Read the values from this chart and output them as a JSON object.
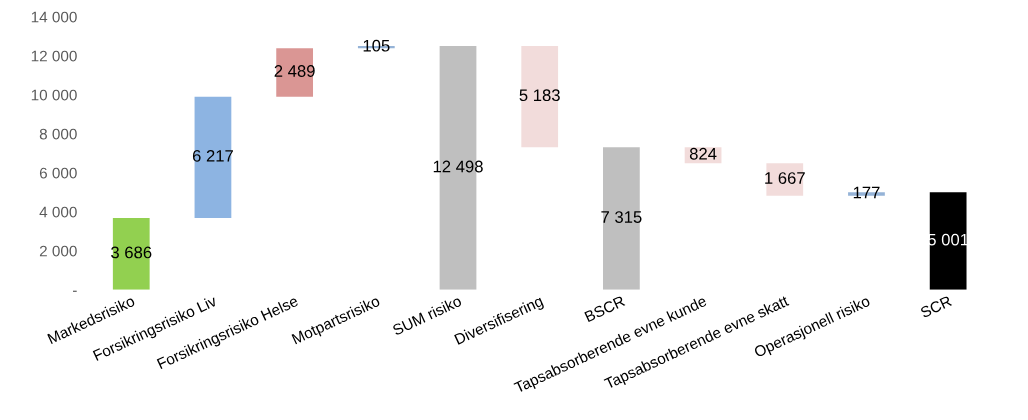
{
  "chart_data": {
    "type": "bar",
    "categories": [
      "Markedsrisiko",
      "Forsikringsrisiko Liv",
      "Forsikringsrisiko Helse",
      "Motpartsrisiko",
      "SUM risiko",
      "Diversifisering",
      "BSCR",
      "Tapsabsorberende evne kunde",
      "Tapsabsorberende evne skatt",
      "Operasjonell risiko",
      "SCR"
    ],
    "values": [
      3686,
      6217,
      2489,
      105,
      12498,
      5183,
      7315,
      824,
      1667,
      177,
      5001
    ],
    "base": [
      0,
      3686,
      9903,
      12392,
      0,
      7315,
      0,
      6491,
      4824,
      4824,
      0
    ],
    "colors": [
      "#92d050",
      "#8db4e2",
      "#da9694",
      "#95b3d7",
      "#bfbfbf",
      "#f2dcdb",
      "#bfbfbf",
      "#f2dcdb",
      "#f2dcdb",
      "#95b3d7",
      "#000000"
    ],
    "value_labels": [
      "3 686",
      "6 217",
      "2 489",
      "105",
      "12 498",
      "5 183",
      "7 315",
      "824",
      "1 667",
      "177",
      "5 001"
    ],
    "ylim": [
      0,
      14000
    ],
    "yticks": [
      {
        "value": 0,
        "label": "-"
      },
      {
        "value": 2000,
        "label": "2 000"
      },
      {
        "value": 4000,
        "label": "4 000"
      },
      {
        "value": 6000,
        "label": "6 000"
      },
      {
        "value": 8000,
        "label": "8 000"
      },
      {
        "value": 10000,
        "label": "10 000"
      },
      {
        "value": 12000,
        "label": "12 000"
      },
      {
        "value": 14000,
        "label": "14 000"
      }
    ],
    "grid": false
  }
}
